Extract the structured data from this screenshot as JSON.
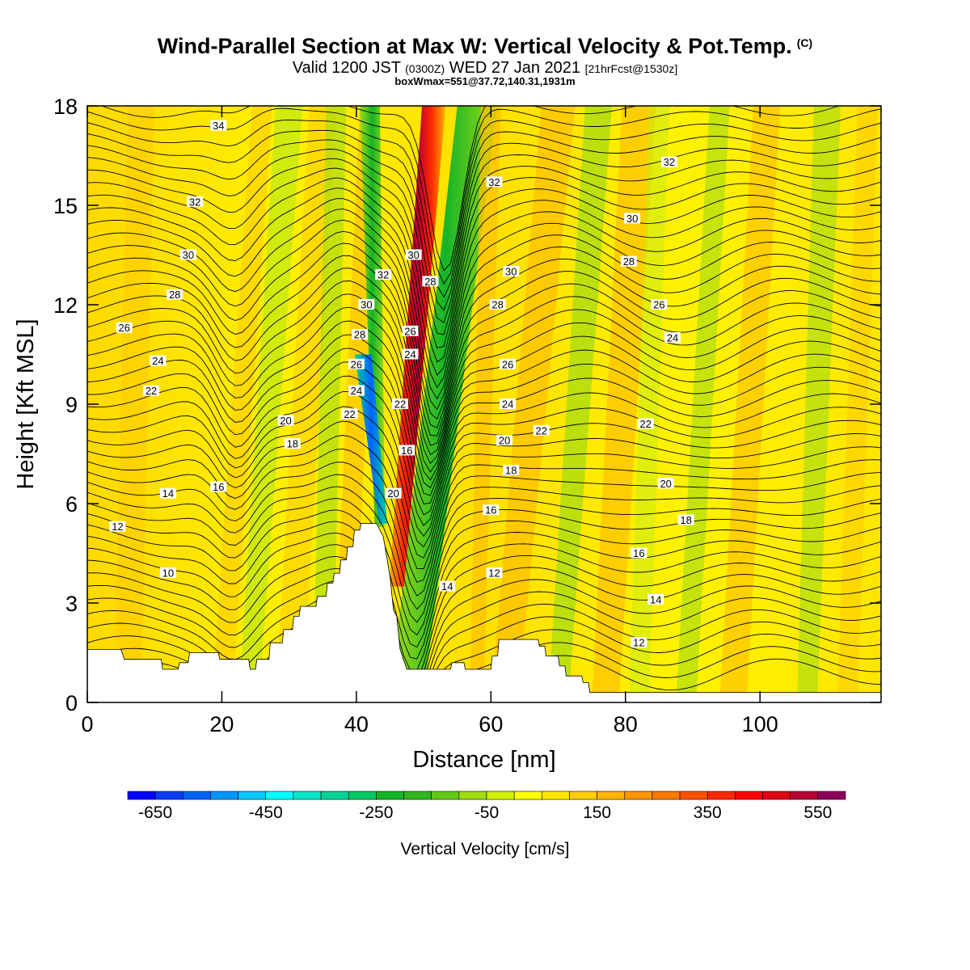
{
  "header": {
    "title": "Wind-Parallel Section at Max W: Vertical Velocity & Pot.Temp.",
    "copyright": "(C)",
    "valid_main": "Valid 1200 JST",
    "valid_utc": "(0300Z)",
    "valid_date": "WED 27 Jan 2021",
    "valid_fcst": "[21hrFcst@1530z]",
    "boxwmax": "boxWmax=551@37.72,140.31,1931m"
  },
  "chart_data": {
    "type": "heatmap",
    "title": "Wind-Parallel Section at Max W: Vertical Velocity & Pot.Temp.",
    "xlabel": "Distance [nm]",
    "ylabel": "Height [Kft MSL]",
    "xlim": [
      0,
      118
    ],
    "ylim": [
      0,
      18
    ],
    "xticks": [
      0,
      20,
      40,
      60,
      80,
      100
    ],
    "yticks": [
      0,
      3,
      6,
      9,
      12,
      15,
      18
    ],
    "colorbar": {
      "label": "Vertical Velocity [cm/s]",
      "range": [
        -700,
        600
      ],
      "step": 50,
      "tick_labels": [
        -650,
        -450,
        -250,
        -50,
        150,
        350,
        550
      ],
      "colors": [
        "#0000ff",
        "#0a3cff",
        "#0064ff",
        "#0096ff",
        "#00c8ff",
        "#00ffff",
        "#00e6c8",
        "#00d296",
        "#00c864",
        "#14b428",
        "#32b41e",
        "#64c814",
        "#a0dc14",
        "#d2f00a",
        "#ffff00",
        "#ffe600",
        "#ffcd00",
        "#ffb400",
        "#ff9600",
        "#ff7800",
        "#ff5000",
        "#ff2800",
        "#ff0000",
        "#dc0014",
        "#b40032",
        "#8c005a",
        "#640096"
      ]
    },
    "terrain_kft": [
      [
        0,
        1.6
      ],
      [
        5,
        1.6
      ],
      [
        5.5,
        1.3
      ],
      [
        11,
        1.3
      ],
      [
        11.2,
        1.0
      ],
      [
        13.5,
        1.0
      ],
      [
        13.7,
        1.2
      ],
      [
        15,
        1.2
      ],
      [
        15.2,
        1.5
      ],
      [
        19.5,
        1.5
      ],
      [
        19.7,
        1.3
      ],
      [
        24,
        1.3
      ],
      [
        24.2,
        1.0
      ],
      [
        25,
        1.0
      ],
      [
        25.2,
        1.3
      ],
      [
        27,
        1.3
      ],
      [
        27.2,
        1.8
      ],
      [
        29,
        1.8
      ],
      [
        29.2,
        2.2
      ],
      [
        30.5,
        2.2
      ],
      [
        30.7,
        2.6
      ],
      [
        31.5,
        2.6
      ],
      [
        31.7,
        2.9
      ],
      [
        34,
        2.9
      ],
      [
        34.2,
        3.2
      ],
      [
        35.5,
        3.2
      ],
      [
        35.7,
        3.6
      ],
      [
        36.5,
        3.6
      ],
      [
        36.7,
        3.9
      ],
      [
        37.5,
        3.9
      ],
      [
        37.7,
        4.3
      ],
      [
        38.5,
        4.3
      ],
      [
        38.7,
        4.7
      ],
      [
        39.5,
        4.7
      ],
      [
        39.7,
        5.2
      ],
      [
        40.5,
        5.2
      ],
      [
        40.7,
        5.4
      ],
      [
        43,
        5.4
      ],
      [
        44,
        5.0
      ],
      [
        45,
        3.8
      ],
      [
        45.5,
        2.8
      ],
      [
        46,
        2.6
      ],
      [
        46.5,
        1.6
      ],
      [
        47,
        1.3
      ],
      [
        47.5,
        1.0
      ],
      [
        54,
        1.0
      ],
      [
        54.2,
        1.2
      ],
      [
        56,
        1.2
      ],
      [
        56.2,
        1.0
      ],
      [
        60,
        1.0
      ],
      [
        60.2,
        1.4
      ],
      [
        61,
        1.4
      ],
      [
        61.2,
        1.9
      ],
      [
        67,
        1.9
      ],
      [
        67.2,
        1.7
      ],
      [
        68,
        1.7
      ],
      [
        68.2,
        1.4
      ],
      [
        70,
        1.4
      ],
      [
        70.2,
        1.1
      ],
      [
        71,
        1.1
      ],
      [
        71.2,
        0.8
      ],
      [
        73.5,
        0.8
      ],
      [
        73.7,
        0.6
      ],
      [
        74.5,
        0.6
      ],
      [
        74.7,
        0.3
      ],
      [
        118,
        0.3
      ]
    ],
    "theta_contours": [
      {
        "label": "10",
        "x": 12.0,
        "y": 3.9
      },
      {
        "label": "12",
        "x": 4.5,
        "y": 5.3
      },
      {
        "label": "14",
        "x": 12.0,
        "y": 6.3
      },
      {
        "label": "16",
        "x": 19.5,
        "y": 6.5
      },
      {
        "label": "20",
        "x": 29.5,
        "y": 8.5
      },
      {
        "label": "18",
        "x": 30.5,
        "y": 7.8
      },
      {
        "label": "22",
        "x": 9.5,
        "y": 9.4
      },
      {
        "label": "24",
        "x": 10.5,
        "y": 10.3
      },
      {
        "label": "26",
        "x": 5.5,
        "y": 11.3
      },
      {
        "label": "28",
        "x": 13.0,
        "y": 12.3
      },
      {
        "label": "30",
        "x": 15.0,
        "y": 13.5
      },
      {
        "label": "32",
        "x": 16.0,
        "y": 15.1
      },
      {
        "label": "34",
        "x": 19.5,
        "y": 17.4
      },
      {
        "label": "22",
        "x": 39.0,
        "y": 8.7
      },
      {
        "label": "24",
        "x": 40.0,
        "y": 9.4
      },
      {
        "label": "26",
        "x": 40.0,
        "y": 10.2
      },
      {
        "label": "28",
        "x": 40.5,
        "y": 11.1
      },
      {
        "label": "30",
        "x": 41.5,
        "y": 12.0
      },
      {
        "label": "32",
        "x": 44.0,
        "y": 12.9
      },
      {
        "label": "30",
        "x": 48.5,
        "y": 13.5
      },
      {
        "label": "28",
        "x": 51.0,
        "y": 12.7
      },
      {
        "label": "26",
        "x": 48.0,
        "y": 11.2
      },
      {
        "label": "24",
        "x": 48.0,
        "y": 10.5
      },
      {
        "label": "22",
        "x": 46.5,
        "y": 9.0
      },
      {
        "label": "16",
        "x": 47.5,
        "y": 7.6
      },
      {
        "label": "20",
        "x": 45.5,
        "y": 6.3
      },
      {
        "label": "14",
        "x": 53.5,
        "y": 3.5
      },
      {
        "label": "12",
        "x": 60.5,
        "y": 3.9
      },
      {
        "label": "16",
        "x": 60.0,
        "y": 5.8
      },
      {
        "label": "18",
        "x": 63.0,
        "y": 7.0
      },
      {
        "label": "20",
        "x": 62.0,
        "y": 7.9
      },
      {
        "label": "24",
        "x": 62.5,
        "y": 9.0
      },
      {
        "label": "26",
        "x": 62.5,
        "y": 10.2
      },
      {
        "label": "28",
        "x": 61.0,
        "y": 12.0
      },
      {
        "label": "30",
        "x": 63.0,
        "y": 13.0
      },
      {
        "label": "32",
        "x": 60.5,
        "y": 15.7
      },
      {
        "label": "22",
        "x": 67.5,
        "y": 8.2
      },
      {
        "label": "22",
        "x": 83.0,
        "y": 8.4
      },
      {
        "label": "20",
        "x": 86.0,
        "y": 6.6
      },
      {
        "label": "18",
        "x": 89.0,
        "y": 5.5
      },
      {
        "label": "16",
        "x": 82.0,
        "y": 4.5
      },
      {
        "label": "14",
        "x": 84.5,
        "y": 3.1
      },
      {
        "label": "12",
        "x": 82.0,
        "y": 1.8
      },
      {
        "label": "24",
        "x": 87.0,
        "y": 11.0
      },
      {
        "label": "26",
        "x": 85.0,
        "y": 12.0
      },
      {
        "label": "28",
        "x": 80.5,
        "y": 13.3
      },
      {
        "label": "30",
        "x": 81.0,
        "y": 14.6
      },
      {
        "label": "32",
        "x": 86.5,
        "y": 16.3
      }
    ]
  }
}
